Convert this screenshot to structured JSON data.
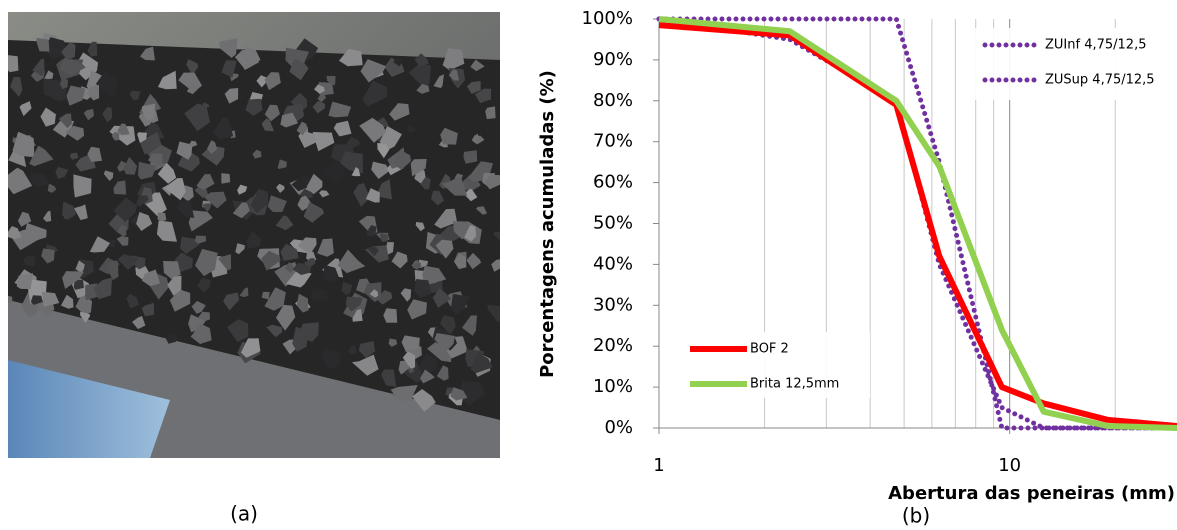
{
  "figure": {
    "captions": [
      "(a)",
      "(b)"
    ]
  },
  "chart_data": {
    "type": "line",
    "xlabel": "Abertura das peneiras (mm)",
    "ylabel": "Porcentagens acumuladas (%)",
    "x_log": true,
    "xlim": [
      1,
      30
    ],
    "xticks": [
      1,
      10
    ],
    "x_minor_grid": [
      2,
      3,
      4,
      5,
      6,
      7,
      8,
      9,
      20
    ],
    "ylim": [
      0,
      100
    ],
    "yticks": [
      {
        "value": 0,
        "label": "0%"
      },
      {
        "value": 10,
        "label": "10%"
      },
      {
        "value": 20,
        "label": "20%"
      },
      {
        "value": 30,
        "label": "30%"
      },
      {
        "value": 40,
        "label": "40%"
      },
      {
        "value": 50,
        "label": "50%"
      },
      {
        "value": 60,
        "label": "60%"
      },
      {
        "value": 70,
        "label": "70%"
      },
      {
        "value": 80,
        "label": "80%"
      },
      {
        "value": 90,
        "label": "90%"
      },
      {
        "value": 100,
        "label": "100%"
      }
    ],
    "x": [
      1,
      2.36,
      4.75,
      6.3,
      9.5,
      12.5,
      19,
      30
    ],
    "series": [
      {
        "name": "BOF 2",
        "color": "#ff0000",
        "style": "solid",
        "legend_loc": "lower left",
        "values": [
          98.5,
          96,
          79,
          42,
          10,
          6,
          2,
          0.5
        ]
      },
      {
        "name": "Brita 12,5mm",
        "color": "#92d050",
        "style": "solid",
        "legend_loc": "lower left",
        "values": [
          100,
          97,
          80,
          64,
          24,
          4,
          0.5,
          0
        ]
      },
      {
        "name": "ZUInf 4,75/12,5",
        "color": "#7030a0",
        "style": "dotted",
        "legend_loc": "upper right",
        "values": [
          100,
          95,
          80,
          40,
          5,
          0,
          0,
          0
        ]
      },
      {
        "name": "ZUSup 4,75/12,5",
        "color": "#7030a0",
        "style": "dotted",
        "legend_loc": "upper right",
        "values": [
          100,
          100,
          100,
          65,
          0,
          0,
          0,
          0
        ]
      }
    ]
  }
}
